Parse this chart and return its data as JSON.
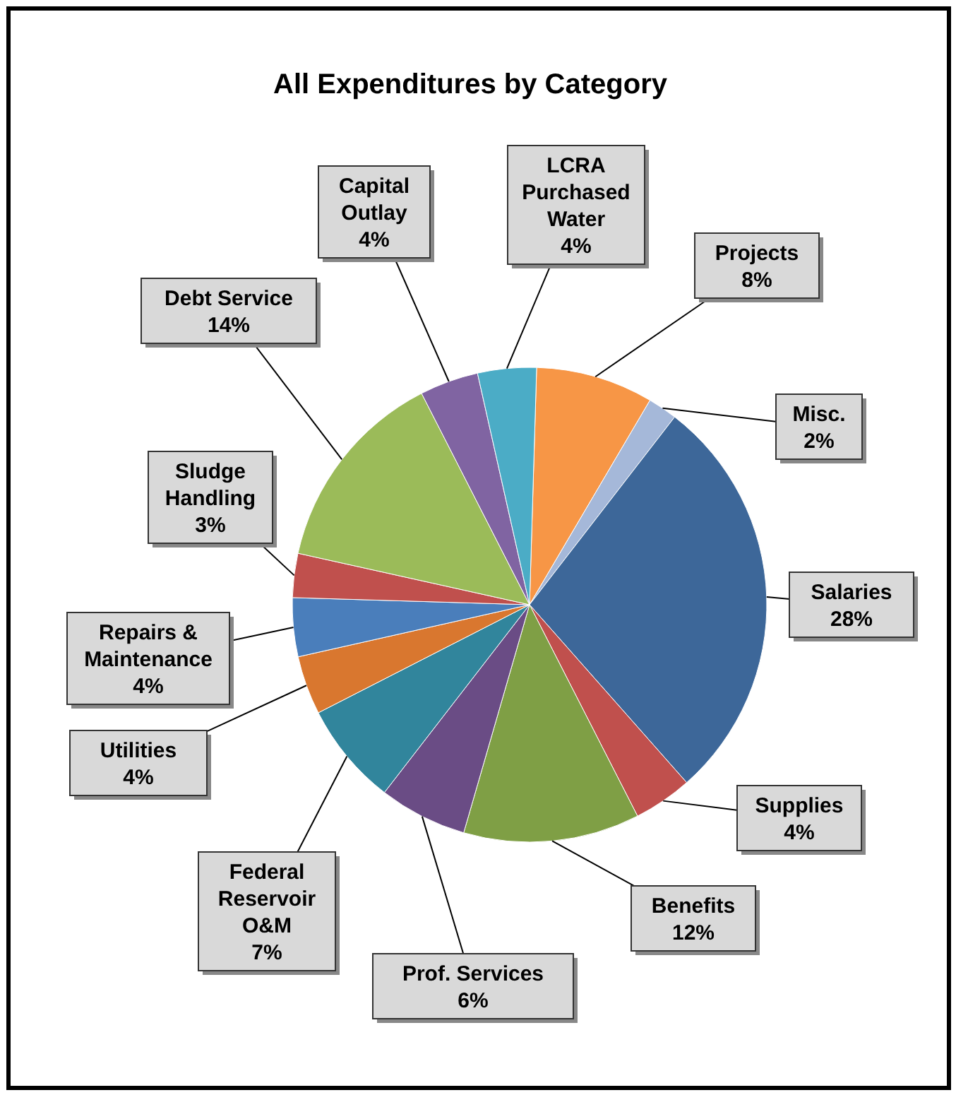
{
  "chart_data": {
    "type": "pie",
    "title": "All Expenditures by Category",
    "categories": [
      "Projects",
      "Misc.",
      "Salaries",
      "Supplies",
      "Benefits",
      "Prof. Services",
      "Federal Reservoir O&M",
      "Utilities",
      "Repairs & Maintenance",
      "Sludge Handling",
      "Debt Service",
      "Capital Outlay",
      "LCRA Purchased Water"
    ],
    "values": [
      8,
      2,
      28,
      4,
      12,
      6,
      7,
      4,
      4,
      3,
      14,
      4,
      4
    ],
    "value_labels": [
      "8%",
      "2%",
      "28%",
      "4%",
      "12%",
      "6%",
      "7%",
      "4%",
      "4%",
      "3%",
      "14%",
      "4%",
      "4%"
    ],
    "colors": [
      "#f79646",
      "#a5b8d9",
      "#3d6799",
      "#c0504d",
      "#7f9f45",
      "#6a4c85",
      "#31859c",
      "#d9772f",
      "#4a7ebb",
      "#c0504d",
      "#9bbb59",
      "#8064a2",
      "#4bacc6"
    ]
  }
}
